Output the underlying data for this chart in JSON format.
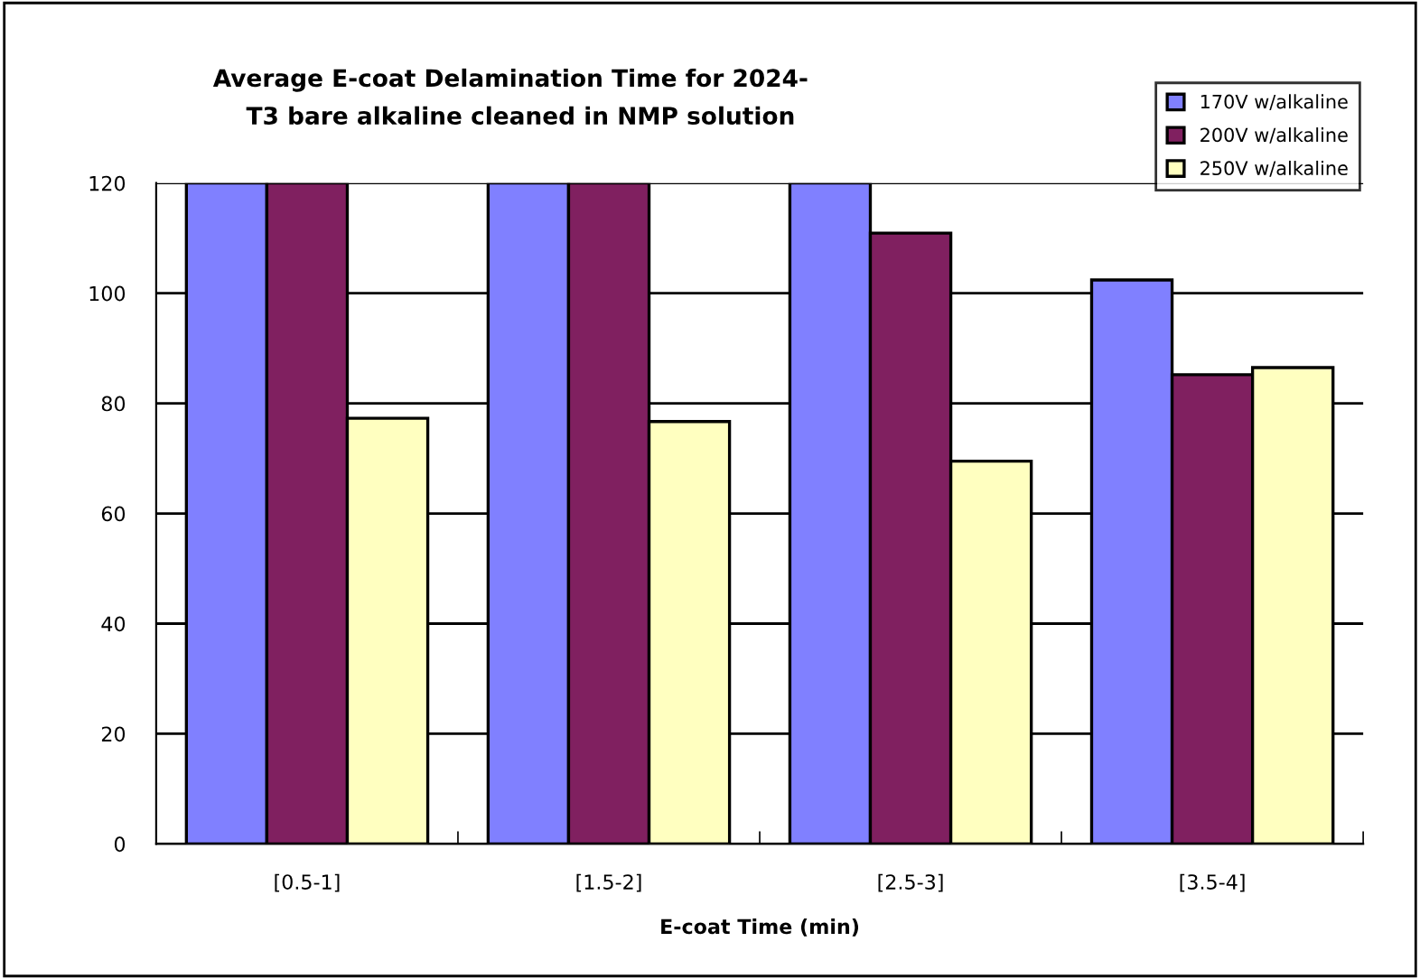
{
  "chart_data": {
    "type": "bar",
    "title": "Average E-coat Delamination Time for 2024-\n    T3 bare alkaline cleaned in NMP solution",
    "xlabel": "E-coat Time (min)",
    "categories": [
      "[0.5-1]",
      "[1.5-2]",
      "[2.5-3]",
      "[3.5-4]"
    ],
    "series": [
      {
        "name": "170V w/alkaline",
        "color": "#8080ff",
        "values": [
          120,
          120,
          120,
          102.4
        ]
      },
      {
        "name": "200V w/alkaline",
        "color": "#802060",
        "values": [
          120,
          120,
          110.9,
          85.2
        ]
      },
      {
        "name": "250V w/alkaline",
        "color": "#ffffc0",
        "values": [
          77.3,
          76.7,
          69.5,
          86.5
        ]
      }
    ],
    "ylim": [
      0,
      120
    ],
    "yticks": [
      0,
      20,
      40,
      60,
      80,
      100,
      120
    ],
    "grid": "y",
    "legend": "top right"
  }
}
